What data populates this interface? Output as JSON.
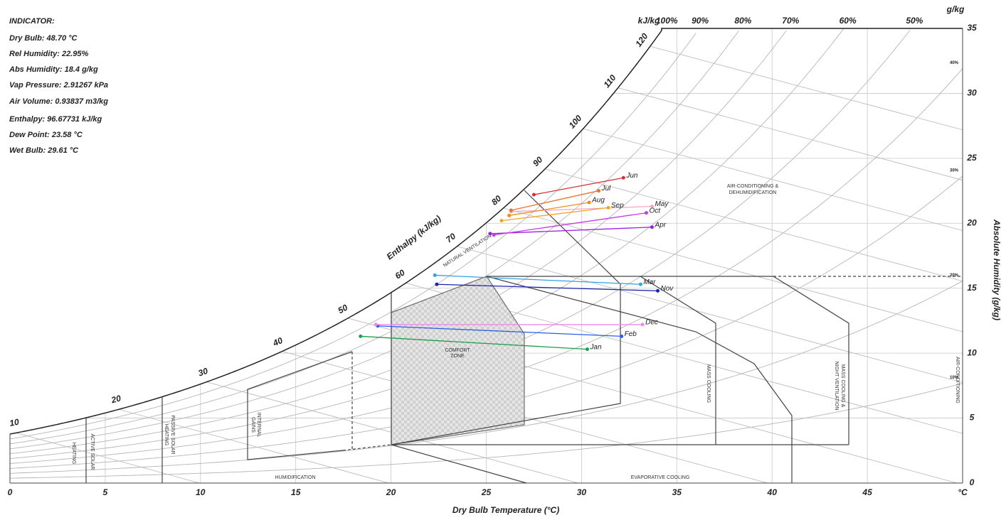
{
  "indicator": {
    "title": "INDICATOR:",
    "lines": [
      "Dry Bulb: 48.70 °C",
      "Rel Humidity: 22.95%",
      "Abs Humidity: 18.4 g/kg",
      "Vap Pressure: 2.91267 kPa",
      "Air Volume: 0.93837 m3/kg",
      "Enthalpy: 96.67731 kJ/kg",
      "Dew Point: 23.58 °C",
      "Wet Bulb: 29.61 °C"
    ]
  },
  "zone_labels": [
    "HEATING",
    "ACTIVE SOLAR",
    "PASSIVE SOLAR",
    "HEATING",
    "INTERNAL",
    "GAINS",
    "HUMIDIFICATION",
    "COMFORT",
    "ZONE",
    "NATURAL VENTILATION",
    "MASS COOLING",
    "MASS COOLING &",
    "NIGHT VENTILATION",
    "EVAPORATIVE COOLING",
    "AIR-CONDITIONING &",
    "DEHUMIDIFICATION",
    "AIR-CONDITIONING"
  ],
  "chart_data": {
    "type": "psychrometric",
    "x_label": "Dry Bulb Temperature (°C)",
    "y_label": "Absolute Humidity (g/kg)",
    "enthalpy_label": "Enthalpy (kJ/kg)",
    "enthalpy_unit": "kJ/kg",
    "y_unit": "g/kg",
    "xlim": [
      0,
      50
    ],
    "ylim": [
      0,
      35
    ],
    "xticks": [
      0,
      5,
      10,
      15,
      20,
      25,
      30,
      35,
      40,
      45,
      {
        "value": 50,
        "label": "°C"
      }
    ],
    "yticks": [
      0,
      5,
      10,
      15,
      20,
      25,
      30,
      35
    ],
    "enthalpy_ticks": [
      10,
      20,
      30,
      40,
      50,
      60,
      70,
      80,
      90,
      100,
      110,
      120
    ],
    "rh_ticks": [
      {
        "value": 100,
        "label": "100%"
      },
      {
        "value": 90,
        "label": "90%"
      },
      {
        "value": 80,
        "label": "80%"
      },
      {
        "value": 70,
        "label": "70%"
      },
      {
        "value": 60,
        "label": "60%"
      },
      {
        "value": 50,
        "label": "50%"
      },
      {
        "value": 40,
        "label": "40%"
      },
      {
        "value": 30,
        "label": "30%"
      },
      {
        "value": 20,
        "label": "20%"
      },
      {
        "value": 10,
        "label": "10%"
      }
    ],
    "grid": true,
    "series": [
      {
        "name": "Jan",
        "color": "#1f9e4a",
        "x": [
          18.4,
          30.3
        ],
        "values": [
          11.3,
          10.3
        ]
      },
      {
        "name": "Feb",
        "color": "#2a5ee8",
        "x": [
          19.3,
          32.1
        ],
        "values": [
          12.1,
          11.3
        ]
      },
      {
        "name": "Mar",
        "color": "#2ea3e6",
        "x": [
          22.3,
          33.1
        ],
        "values": [
          16.0,
          15.3
        ]
      },
      {
        "name": "Apr",
        "color": "#9b1fe0",
        "x": [
          25.2,
          33.7
        ],
        "values": [
          19.2,
          19.7
        ]
      },
      {
        "name": "May",
        "color": "#f4a6c6",
        "x": [
          26.3,
          33.7
        ],
        "values": [
          20.9,
          21.3
        ]
      },
      {
        "name": "Jun",
        "color": "#d9303a",
        "x": [
          27.5,
          32.2
        ],
        "values": [
          22.2,
          23.5
        ]
      },
      {
        "name": "Jul",
        "color": "#e8742a",
        "x": [
          26.3,
          30.9
        ],
        "values": [
          21.0,
          22.5
        ]
      },
      {
        "name": "Aug",
        "color": "#ee8c1c",
        "x": [
          26.2,
          30.4
        ],
        "values": [
          20.6,
          21.6
        ]
      },
      {
        "name": "Sep",
        "color": "#f3a42a",
        "x": [
          25.8,
          31.4
        ],
        "values": [
          20.2,
          21.2
        ]
      },
      {
        "name": "Oct",
        "color": "#c43be0",
        "x": [
          25.4,
          33.4
        ],
        "values": [
          19.1,
          20.8
        ]
      },
      {
        "name": "Nov",
        "color": "#1a23a8",
        "x": [
          22.4,
          34.0
        ],
        "values": [
          15.3,
          14.8
        ]
      },
      {
        "name": "Dec",
        "color": "#ec8ae8",
        "x": [
          19.2,
          33.2
        ],
        "values": [
          12.2,
          12.2
        ]
      }
    ]
  }
}
